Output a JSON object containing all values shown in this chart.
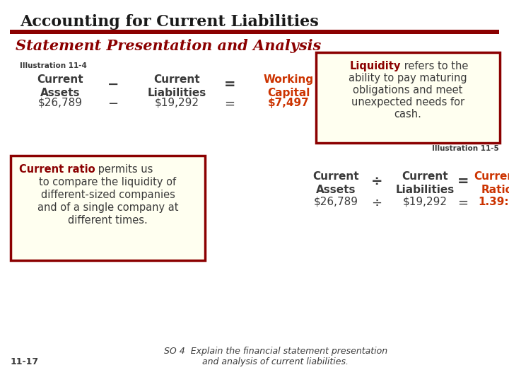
{
  "bg_color": "#FFFFFF",
  "title": "Accounting for Current Liabilities",
  "title_color": "#1a1a1a",
  "title_fontsize": 16,
  "subtitle": "Statement Presentation and Analysis",
  "subtitle_color": "#8B0000",
  "subtitle_fontsize": 15,
  "divider_color": "#8B0000",
  "illus4_label": "Illustration 11-4",
  "illus5_label": "Illustration 11-5",
  "dark_color": "#3a3a3a",
  "red_color": "#CC3300",
  "maroon_color": "#8B0000",
  "box_bg": "#FFFFF0",
  "box_border": "#8B0000",
  "footer_left": "11-17",
  "footer_right": "SO 4  Explain the financial statement presentation\nand analysis of current liabilities."
}
